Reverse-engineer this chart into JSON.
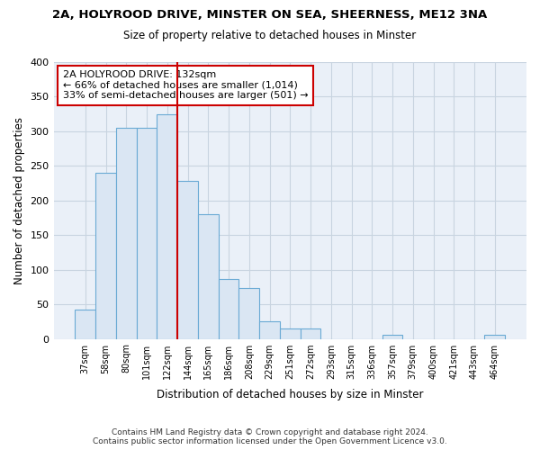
{
  "title1": "2A, HOLYROOD DRIVE, MINSTER ON SEA, SHEERNESS, ME12 3NA",
  "title2": "Size of property relative to detached houses in Minster",
  "xlabel": "Distribution of detached houses by size in Minster",
  "ylabel": "Number of detached properties",
  "bar_labels": [
    "37sqm",
    "58sqm",
    "80sqm",
    "101sqm",
    "122sqm",
    "144sqm",
    "165sqm",
    "186sqm",
    "208sqm",
    "229sqm",
    "251sqm",
    "272sqm",
    "293sqm",
    "315sqm",
    "336sqm",
    "357sqm",
    "379sqm",
    "400sqm",
    "421sqm",
    "443sqm",
    "464sqm"
  ],
  "bar_values": [
    42,
    240,
    305,
    305,
    325,
    228,
    180,
    86,
    73,
    25,
    15,
    15,
    0,
    0,
    0,
    6,
    0,
    0,
    0,
    0,
    6
  ],
  "bar_color": "#dae6f3",
  "bar_edge_color": "#6aaad4",
  "vline_x": 4.5,
  "vline_color": "#cc0000",
  "annotation_text": "2A HOLYROOD DRIVE: 132sqm\n← 66% of detached houses are smaller (1,014)\n33% of semi-detached houses are larger (501) →",
  "annotation_box_color": "#ffffff",
  "annotation_box_edge": "#cc0000",
  "ylim": [
    0,
    400
  ],
  "yticks": [
    0,
    50,
    100,
    150,
    200,
    250,
    300,
    350,
    400
  ],
  "grid_color": "#c8d4e0",
  "bg_color": "#eaf0f8",
  "fig_bg": "#ffffff",
  "footer": "Contains HM Land Registry data © Crown copyright and database right 2024.\nContains public sector information licensed under the Open Government Licence v3.0."
}
